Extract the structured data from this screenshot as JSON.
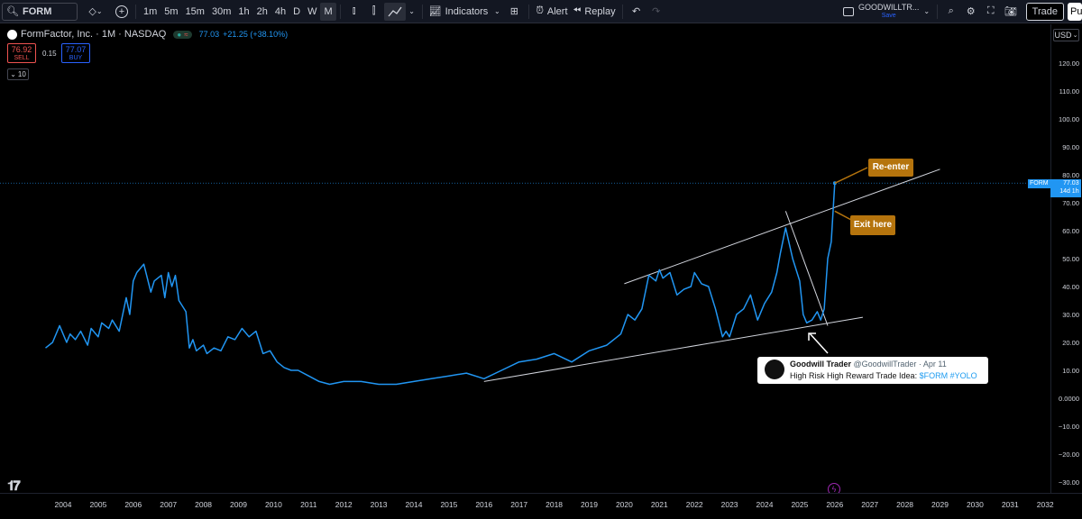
{
  "toolbar": {
    "symbol": "FORM",
    "intervals": [
      "1m",
      "5m",
      "15m",
      "30m",
      "1h",
      "2h",
      "4h",
      "D",
      "W",
      "M"
    ],
    "active_interval": "M",
    "indicators_label": "Indicators",
    "alert_label": "Alert",
    "replay_label": "Replay",
    "layout_name": "GOODWILLTR...",
    "save_label": "Save",
    "trade_label": "Trade",
    "publish_label": "Pu"
  },
  "legend": {
    "title": "FormFactor, Inc. · 1M · NASDAQ",
    "price": "77.03",
    "change": "+21.25 (+38.10%)",
    "sell_price": "76.92",
    "sell_label": "SELL",
    "spread": "0.15",
    "buy_price": "77.07",
    "buy_label": "BUY",
    "collapse_count": "10"
  },
  "currency": "USD",
  "price_label": {
    "symbol": "FORM",
    "price": "77.03",
    "countdown": "14d 1h"
  },
  "annotations": {
    "reenter": "Re-enter",
    "exit": "Exit here"
  },
  "tweet": {
    "name": "Goodwill Trader",
    "handle": "@GoodwillTrader · Apr 11",
    "text_plain": "High Risk High Reward Trade Idea: ",
    "cashtag": "$FORM",
    "hashtag": "#YOLO"
  },
  "colors": {
    "line": "#2196f3",
    "background": "#000000",
    "annotation": "#b5740d",
    "trendline": "#d1d4dc"
  },
  "chart_data": {
    "type": "line",
    "series": [
      {
        "name": "",
        "x": [
          2003.5,
          2003.7,
          2003.9,
          2004.1,
          2004.2,
          2004.35,
          2004.5,
          2004.7,
          2004.8,
          2005.0,
          2005.1,
          2005.3,
          2005.4,
          2005.6,
          2005.8,
          2005.9,
          2006.0,
          2006.1,
          2006.3,
          2006.5,
          2006.6,
          2006.8,
          2006.9,
          2007.0,
          2007.1,
          2007.2,
          2007.3,
          2007.5,
          2007.6,
          2007.7,
          2007.8,
          2008.0,
          2008.1,
          2008.3,
          2008.5,
          2008.7,
          2008.9,
          2009.1,
          2009.3,
          2009.5,
          2009.7,
          2009.9,
          2010.1,
          2010.3,
          2010.5,
          2010.7,
          2011.0,
          2011.3,
          2011.6,
          2012.0,
          2012.5,
          2013.0,
          2013.5,
          2014.0,
          2014.5,
          2015.0,
          2015.5,
          2016.0,
          2016.5,
          2017.0,
          2017.5,
          2018.0,
          2018.5,
          2019.0,
          2019.5,
          2019.9,
          2020.1,
          2020.3,
          2020.5,
          2020.7,
          2020.9,
          2021.0,
          2021.1,
          2021.3,
          2021.5,
          2021.7,
          2021.9,
          2022.0,
          2022.2,
          2022.4,
          2022.6,
          2022.8,
          2022.9,
          2023.0,
          2023.2,
          2023.4,
          2023.6,
          2023.8,
          2024.0,
          2024.2,
          2024.35,
          2024.45,
          2024.6,
          2024.8,
          2025.0,
          2025.1,
          2025.2,
          2025.35,
          2025.5,
          2025.6,
          2025.7,
          2025.8,
          2025.9,
          2026.0
        ],
        "y": [
          18,
          20,
          26,
          20,
          23,
          21,
          24,
          19,
          25,
          22,
          27,
          25,
          28,
          24,
          36,
          30,
          42,
          45,
          48,
          38,
          42,
          44,
          36,
          45,
          40,
          44,
          35,
          31,
          18,
          21,
          17,
          19,
          16,
          18,
          17,
          22,
          21,
          25,
          22,
          24,
          16,
          17,
          13,
          11,
          10,
          10,
          8,
          6,
          5,
          6,
          6,
          5,
          5,
          6,
          7,
          8,
          9,
          7,
          10,
          13,
          14,
          16,
          13,
          17,
          19,
          23,
          30,
          28,
          32,
          44,
          42,
          46,
          43,
          45,
          37,
          39,
          40,
          45,
          41,
          40,
          32,
          22,
          24,
          22,
          30,
          32,
          37,
          28,
          34,
          38,
          45,
          52,
          61,
          50,
          42,
          30,
          27,
          28,
          31,
          28,
          32,
          50,
          56,
          77
        ]
      }
    ],
    "trendlines": [
      {
        "label": "upper channel",
        "from": [
          2020.0,
          41
        ],
        "to": [
          2029.0,
          82
        ]
      },
      {
        "label": "lower support",
        "from": [
          2016.0,
          6
        ],
        "to": [
          2026.8,
          29
        ]
      },
      {
        "label": "descending",
        "from": [
          2024.6,
          67
        ],
        "to": [
          2025.8,
          26
        ]
      }
    ],
    "ylim": [
      -30,
      130
    ],
    "y_ticks": [
      "120.00",
      "110.00",
      "100.00",
      "90.00",
      "80.00",
      "70.00",
      "60.00",
      "50.00",
      "40.00",
      "30.00",
      "20.00",
      "10.00",
      "0.0000",
      "−10.00",
      "−20.00",
      "−30.00"
    ],
    "x_ticks": [
      "2004",
      "2005",
      "2006",
      "2007",
      "2008",
      "2009",
      "2010",
      "2011",
      "2012",
      "2013",
      "2014",
      "2015",
      "2016",
      "2017",
      "2018",
      "2019",
      "2020",
      "2021",
      "2022",
      "2023",
      "2024",
      "2025",
      "2026",
      "2027",
      "2028",
      "2029",
      "2030",
      "2031",
      "2032"
    ],
    "xlim": [
      2003,
      2032.5
    ],
    "current_price": 77.03,
    "title": "",
    "xlabel": "",
    "ylabel": ""
  }
}
